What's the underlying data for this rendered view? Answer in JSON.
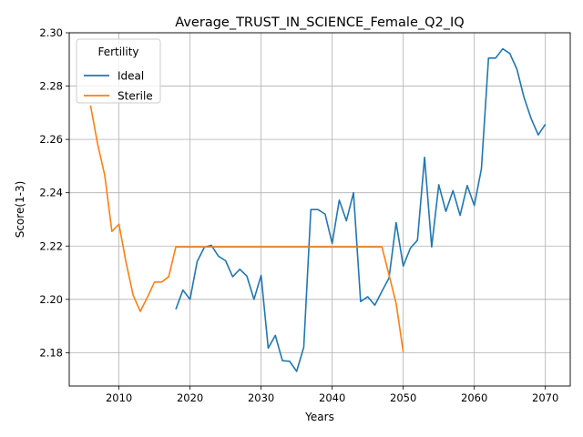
{
  "chart_data": {
    "type": "line",
    "title": "Average_TRUST_IN_SCIENCE_Female_Q2_IQ",
    "xlabel": "Years",
    "ylabel": "Score(1-3)",
    "xlim": [
      2003,
      2073.5
    ],
    "ylim": [
      2.1675,
      2.3
    ],
    "x_ticks": [
      2010,
      2020,
      2030,
      2040,
      2050,
      2060,
      2070
    ],
    "y_ticks": [
      2.18,
      2.2,
      2.22,
      2.24,
      2.26,
      2.28,
      2.3
    ],
    "x_tick_labels": [
      "2010",
      "2020",
      "2030",
      "2040",
      "2050",
      "2060",
      "2070"
    ],
    "y_tick_labels": [
      "2.18",
      "2.20",
      "2.22",
      "2.24",
      "2.26",
      "2.28",
      "2.30"
    ],
    "grid": true,
    "legend": {
      "title": "Fertility",
      "position": "top-left"
    },
    "series": [
      {
        "name": "Ideal",
        "color": "#1f77b4",
        "x": [
          2018,
          2019,
          2020,
          2021,
          2022,
          2023,
          2024,
          2025,
          2026,
          2027,
          2028,
          2029,
          2030,
          2031,
          2032,
          2033,
          2034,
          2035,
          2036,
          2037,
          2038,
          2039,
          2040,
          2041,
          2042,
          2043,
          2044,
          2045,
          2046,
          2047,
          2048,
          2049,
          2050,
          2051,
          2052,
          2053,
          2054,
          2055,
          2056,
          2057,
          2058,
          2059,
          2060,
          2061,
          2062,
          2063,
          2064,
          2065,
          2066,
          2067,
          2068,
          2069,
          2070
        ],
        "y": [
          2.1963,
          2.2035,
          2.2,
          2.2142,
          2.2195,
          2.2203,
          2.2162,
          2.2145,
          2.2085,
          2.2113,
          2.2087,
          2.2,
          2.209,
          2.1817,
          2.1865,
          2.177,
          2.1768,
          2.173,
          2.182,
          2.2337,
          2.2337,
          2.232,
          2.221,
          2.2372,
          2.2295,
          2.24,
          2.1992,
          2.201,
          2.1978,
          2.203,
          2.208,
          2.2288,
          2.2125,
          2.2192,
          2.2222,
          2.2533,
          2.2197,
          2.243,
          2.233,
          2.2408,
          2.2315,
          2.2427,
          2.2352,
          2.249,
          2.2905,
          2.2905,
          2.294,
          2.2922,
          2.2863,
          2.2757,
          2.2678,
          2.2617,
          2.2657
        ]
      },
      {
        "name": "Sterile",
        "color": "#ff7f0e",
        "x": [
          2006,
          2007,
          2008,
          2009,
          2010,
          2011,
          2012,
          2013,
          2014,
          2015,
          2016,
          2017,
          2018,
          2019,
          2020,
          2021,
          2022,
          2023,
          2024,
          2025,
          2026,
          2027,
          2028,
          2029,
          2030,
          2031,
          2032,
          2033,
          2034,
          2035,
          2036,
          2037,
          2038,
          2039,
          2040,
          2041,
          2042,
          2043,
          2044,
          2045,
          2046,
          2047,
          2048,
          2049,
          2050
        ],
        "y": [
          2.2727,
          2.2582,
          2.2465,
          2.2255,
          2.2282,
          2.2138,
          2.2015,
          2.1955,
          2.2008,
          2.2065,
          2.2065,
          2.2085,
          2.2197,
          2.2197,
          2.2197,
          2.2197,
          2.2197,
          2.2197,
          2.2197,
          2.2197,
          2.2197,
          2.2197,
          2.2197,
          2.2197,
          2.2197,
          2.2197,
          2.2197,
          2.2197,
          2.2197,
          2.2197,
          2.2197,
          2.2197,
          2.2197,
          2.2197,
          2.2197,
          2.2197,
          2.2197,
          2.2197,
          2.2197,
          2.2197,
          2.2197,
          2.2197,
          2.2092,
          2.1985,
          2.1802
        ]
      }
    ]
  }
}
